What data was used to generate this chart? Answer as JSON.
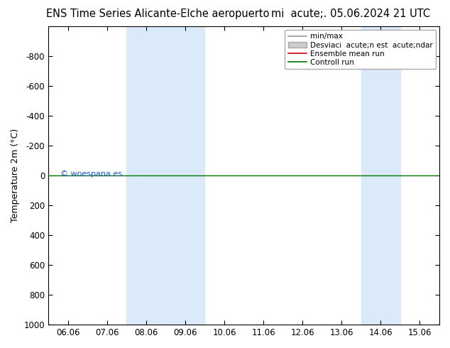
{
  "title_left": "ENS Time Series Alicante-Elche aeropuerto",
  "title_right": "mi  acute;. 05.06.2024 21 UTC",
  "ylabel": "Temperature 2m (°C)",
  "watermark": "© woespana.es",
  "ylim_bottom": -1000,
  "ylim_top": 1000,
  "yticks": [
    -800,
    -600,
    -400,
    -200,
    0,
    200,
    400,
    600,
    800,
    1000
  ],
  "xtick_labels": [
    "06.06",
    "07.06",
    "08.06",
    "09.06",
    "10.06",
    "11.06",
    "12.06",
    "13.06",
    "14.06",
    "15.06"
  ],
  "shaded_regions": [
    {
      "xmin": 2.0,
      "xmax": 3.0,
      "color": "#daeaf8"
    },
    {
      "xmin": 3.0,
      "xmax": 4.0,
      "color": "#daeaf8"
    },
    {
      "xmin": 8.0,
      "xmax": 9.0,
      "color": "#daeaf8"
    }
  ],
  "green_line_y": 0,
  "background_color": "#ffffff",
  "plot_bg_color": "#ffffff",
  "legend_label_minmax": "min/max",
  "legend_label_std": "Desviaci  acute;n est  acute;ndar",
  "legend_label_ensemble": "Ensemble mean run",
  "legend_label_control": "Controll run",
  "title_fontsize": 10.5,
  "axis_label_fontsize": 9,
  "tick_fontsize": 8.5,
  "legend_fontsize": 7.5
}
